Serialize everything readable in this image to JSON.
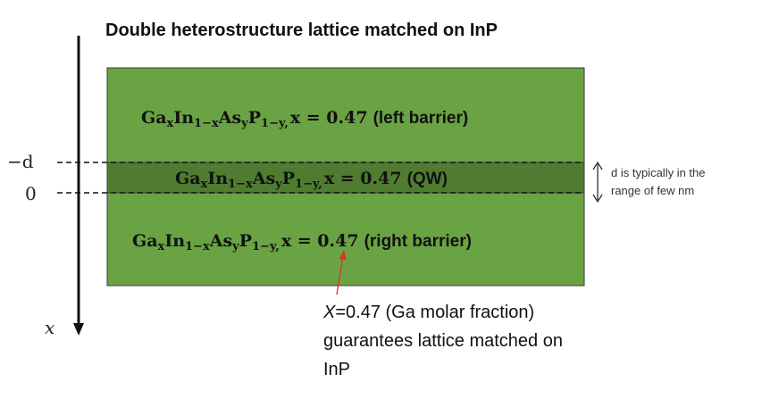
{
  "title": "Double heterostructure lattice matched on InP",
  "axis": {
    "variable": "x",
    "tick_minus_d": "−d",
    "tick_zero": "0"
  },
  "layers": {
    "left_barrier": {
      "prefix": "x = 0.47",
      "label": "(left barrier)"
    },
    "qw": {
      "prefix": "x = 0.47",
      "label": "(QW)"
    },
    "right_barrier": {
      "prefix": "x = 0.47",
      "label": "(right barrier)"
    }
  },
  "formula": {
    "ga": "Ga",
    "x": "x",
    "in": "In",
    "one_minus_x": "1−x",
    "as": "As",
    "y": "y",
    "p": "P",
    "one_minus_y": "1−y",
    "comma": ","
  },
  "note": {
    "line1": "d is typically in the",
    "line2": "range of few nm"
  },
  "caption": {
    "var": "X",
    "line1_rest": "=0.47 (Ga molar fraction)",
    "line2": "guarantees lattice matched on",
    "line3": "InP"
  },
  "colors": {
    "barrier_fill": "#6aa343",
    "qw_fill": "#4f7c31",
    "layer_border": "#3b3b3b",
    "arrow_red": "#e0301e"
  }
}
